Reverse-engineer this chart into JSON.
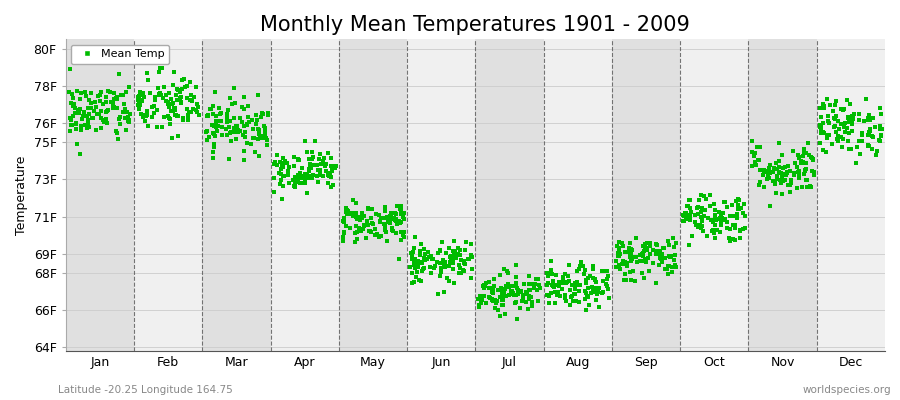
{
  "title": "Monthly Mean Temperatures 1901 - 2009",
  "ylabel": "Temperature",
  "xlabel_bottom_left": "Latitude -20.25 Longitude 164.75",
  "xlabel_bottom_right": "worldspecies.org",
  "dot_color": "#00BB00",
  "background_color": "#ffffff",
  "band_light": "#f0f0f0",
  "band_dark": "#e0e0e0",
  "yticks": [
    64,
    66,
    68,
    69,
    71,
    73,
    75,
    76,
    78,
    80
  ],
  "ytick_labels": [
    "64F",
    "66F",
    "68F",
    "69F",
    "71F",
    "73F",
    "75F",
    "76F",
    "78F",
    "80F"
  ],
  "ylim": [
    63.8,
    80.5
  ],
  "months": [
    "Jan",
    "Feb",
    "Mar",
    "Apr",
    "May",
    "Jun",
    "Jul",
    "Aug",
    "Sep",
    "Oct",
    "Nov",
    "Dec"
  ],
  "num_years": 109,
  "seed": 42,
  "mean_temps_F": [
    76.6,
    77.0,
    75.9,
    73.5,
    70.7,
    68.5,
    67.0,
    67.2,
    68.8,
    71.0,
    73.5,
    75.8
  ],
  "std_temps_F": [
    0.8,
    0.85,
    0.7,
    0.55,
    0.55,
    0.55,
    0.55,
    0.55,
    0.6,
    0.65,
    0.7,
    0.75
  ],
  "title_fontsize": 15,
  "axis_fontsize": 9,
  "legend_fontsize": 8,
  "marker_size": 5
}
